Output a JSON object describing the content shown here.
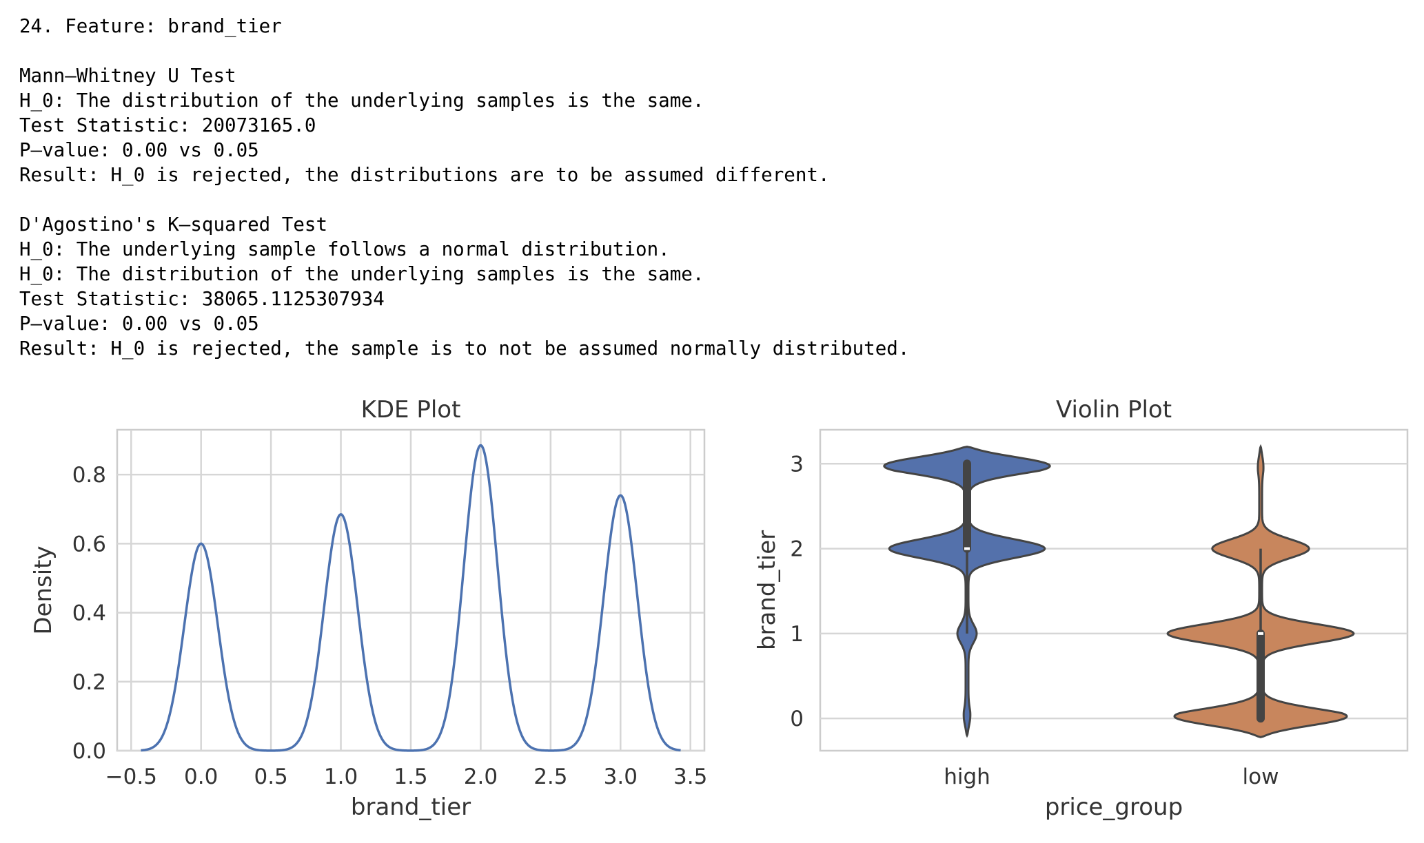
{
  "output": {
    "header": "24. Feature: brand_tier",
    "test1": {
      "name": "Mann–Whitney U Test",
      "h0": "H_0: The distribution of the underlying samples is the same.",
      "statistic": "Test Statistic: 20073165.0",
      "pvalue": "P–value: 0.00 vs 0.05",
      "result": "Result: H_0 is rejected, the distributions are to be assumed different."
    },
    "test2": {
      "name": "D'Agostino's K–squared Test",
      "h0a": "H_0: The underlying sample follows a normal distribution.",
      "h0b": "H_0: The distribution of the underlying samples is the same.",
      "statistic": "Test Statistic: 38065.1125307934",
      "pvalue": "P–value: 0.00 vs 0.05",
      "result": "Result: H_0 is rejected, the sample is to not be assumed normally distributed."
    }
  },
  "chart_data": [
    {
      "type": "line",
      "title": "KDE Plot",
      "xlabel": "brand_tier",
      "ylabel": "Density",
      "xlim": [
        -0.6,
        3.6
      ],
      "ylim": [
        0,
        0.93
      ],
      "xticks": [
        -0.5,
        0.0,
        0.5,
        1.0,
        1.5,
        2.0,
        2.5,
        3.0,
        3.5
      ],
      "xtick_labels": [
        "−0.5",
        "0.0",
        "0.5",
        "1.0",
        "1.5",
        "2.0",
        "2.5",
        "3.0",
        "3.5"
      ],
      "yticks": [
        0.0,
        0.2,
        0.4,
        0.6,
        0.8
      ],
      "ytick_labels": [
        "0.0",
        "0.2",
        "0.4",
        "0.6",
        "0.8"
      ],
      "grid": true,
      "series": [
        {
          "color": "#4c72b0",
          "x_range": [
            -0.43,
            3.43
          ],
          "peaks": [
            {
              "x": 0.0,
              "y": 0.6
            },
            {
              "x": 1.0,
              "y": 0.685
            },
            {
              "x": 2.0,
              "y": 0.885
            },
            {
              "x": 3.0,
              "y": 0.74
            }
          ],
          "bandwidth": 0.12
        }
      ]
    },
    {
      "type": "violin",
      "title": "Violin Plot",
      "xlabel": "price_group",
      "ylabel": "brand_tier",
      "categories": [
        "high",
        "low"
      ],
      "ylim": [
        -0.38,
        3.4
      ],
      "yticks": [
        0,
        1,
        2,
        3
      ],
      "ytick_labels": [
        "0",
        "1",
        "2",
        "3"
      ],
      "grid": true,
      "violins": [
        {
          "category": "high",
          "color": "#5471ab",
          "min": -0.2,
          "max": 3.2,
          "modes": [
            {
              "y": 0.0,
              "w": 0.02
            },
            {
              "y": 1.0,
              "w": 0.07
            },
            {
              "y": 2.0,
              "w": 0.65
            },
            {
              "y": 3.0,
              "w": 0.8
            }
          ],
          "q1": 2.0,
          "median": 2.0,
          "q3": 3.0,
          "whisker_low": 1.0,
          "whisker_high": 3.0
        },
        {
          "category": "low",
          "color": "#c8865d",
          "min": -0.22,
          "max": 3.2,
          "modes": [
            {
              "y": 0.0,
              "w": 0.8
            },
            {
              "y": 1.0,
              "w": 0.78
            },
            {
              "y": 2.0,
              "w": 0.4
            },
            {
              "y": 3.0,
              "w": 0.015
            }
          ],
          "q1": 0.0,
          "median": 1.0,
          "q3": 1.0,
          "whisker_low": 0.0,
          "whisker_high": 2.0
        }
      ]
    }
  ]
}
